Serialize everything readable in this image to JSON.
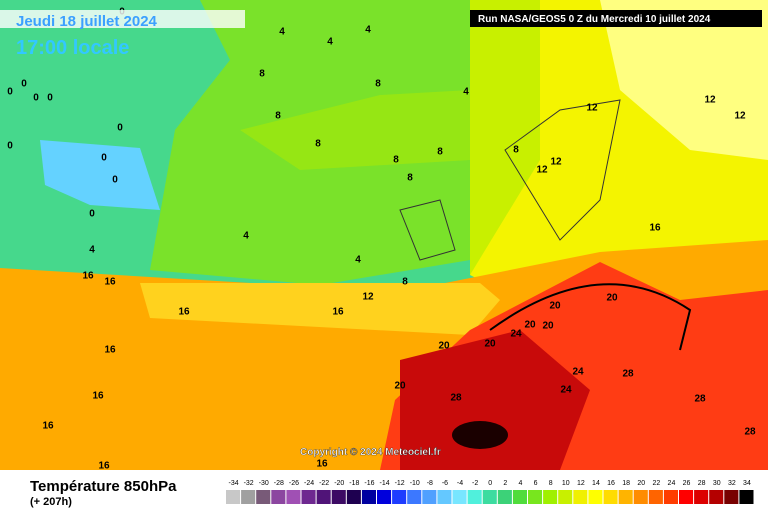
{
  "header": {
    "date": "Jeudi 18 juillet 2024",
    "time": "17:00 locale",
    "run": "Run NASA/GEOS5 0 Z du Mercredi 10 juillet 2024",
    "copyright": "Copyright © 2024 Meteociel.fr"
  },
  "footer": {
    "title": "Température 850hPa",
    "lead": "(+ 207h)"
  },
  "scale": {
    "values": [
      -34,
      -32,
      -30,
      -28,
      -26,
      -24,
      -22,
      -20,
      -18,
      -16,
      -14,
      -12,
      -10,
      -8,
      -6,
      -4,
      -2,
      0,
      2,
      4,
      6,
      8,
      10,
      12,
      14,
      16,
      18,
      20,
      22,
      24,
      26,
      28,
      30,
      32,
      34
    ],
    "colors": [
      "#c8c8c8",
      "#a0a0a0",
      "#785a78",
      "#8c46a0",
      "#a050b4",
      "#6e2890",
      "#501478",
      "#3c0a64",
      "#1e0050",
      "#0000a0",
      "#0000dc",
      "#1e3cff",
      "#3c78ff",
      "#50a0ff",
      "#64c8ff",
      "#78e6ff",
      "#50f0dc",
      "#3cdca0",
      "#3cd278",
      "#50dc3c",
      "#78e61e",
      "#a0f000",
      "#c8f000",
      "#f0f000",
      "#ffff00",
      "#ffdc00",
      "#ffb400",
      "#ff8c00",
      "#ff6400",
      "#ff3c00",
      "#ff0000",
      "#dc0000",
      "#b40000",
      "#780000",
      "#000000"
    ]
  },
  "contour_labels": [
    0,
    0,
    0,
    0,
    0,
    0,
    0,
    0,
    0,
    0,
    4,
    4,
    4,
    4,
    4,
    4,
    4,
    8,
    8,
    8,
    8,
    8,
    8,
    8,
    8,
    8,
    12,
    12,
    12,
    12,
    12,
    12,
    16,
    16,
    16,
    16,
    16,
    16,
    16,
    16,
    20,
    20,
    20,
    20,
    20,
    20,
    20,
    24,
    24,
    24,
    28,
    28,
    28,
    28,
    16,
    16
  ]
}
